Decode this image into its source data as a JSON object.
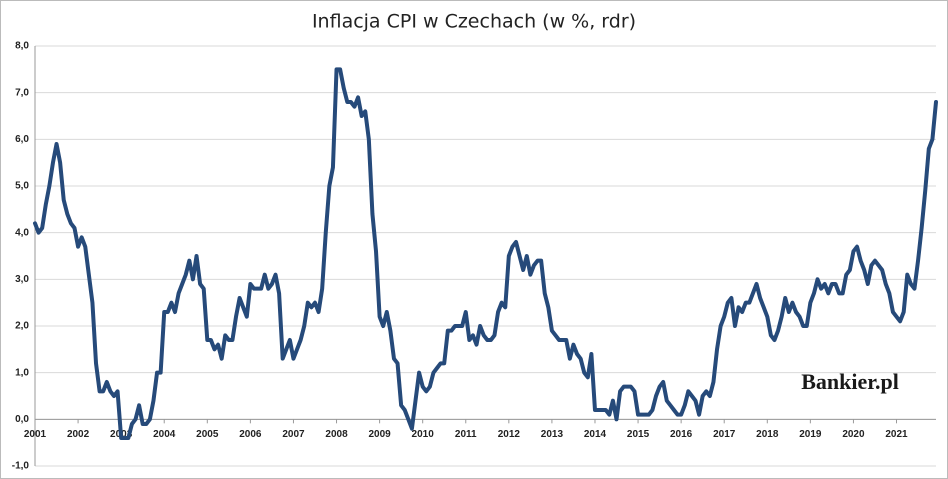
{
  "chart_data": {
    "type": "line",
    "title": "Inflacja CPI w Czechach (w %, rdr)",
    "watermark": "Bankier.pl",
    "color": "#264a7a",
    "grid": true,
    "ylim": [
      -1,
      8
    ],
    "yticks": [
      {
        "value": -1,
        "label": "-1,0"
      },
      {
        "value": 0,
        "label": "0,0"
      },
      {
        "value": 1,
        "label": "1,0"
      },
      {
        "value": 2,
        "label": "2,0"
      },
      {
        "value": 3,
        "label": "3,0"
      },
      {
        "value": 4,
        "label": "4,0"
      },
      {
        "value": 5,
        "label": "5,0"
      },
      {
        "value": 6,
        "label": "6,0"
      },
      {
        "value": 7,
        "label": "7,0"
      },
      {
        "value": 8,
        "label": "8,0"
      }
    ],
    "categories": [
      "2001",
      null,
      null,
      null,
      null,
      null,
      null,
      null,
      null,
      null,
      null,
      null,
      "2002",
      null,
      null,
      null,
      null,
      null,
      null,
      null,
      null,
      null,
      null,
      null,
      "2003",
      null,
      null,
      null,
      null,
      null,
      null,
      null,
      null,
      null,
      null,
      null,
      "2004",
      null,
      null,
      null,
      null,
      null,
      null,
      null,
      null,
      null,
      null,
      null,
      "2005",
      null,
      null,
      null,
      null,
      null,
      null,
      null,
      null,
      null,
      null,
      null,
      "2006",
      null,
      null,
      null,
      null,
      null,
      null,
      null,
      null,
      null,
      null,
      null,
      "2007",
      null,
      null,
      null,
      null,
      null,
      null,
      null,
      null,
      null,
      null,
      null,
      "2008",
      null,
      null,
      null,
      null,
      null,
      null,
      null,
      null,
      null,
      null,
      null,
      "2009",
      null,
      null,
      null,
      null,
      null,
      null,
      null,
      null,
      null,
      null,
      null,
      "2010",
      null,
      null,
      null,
      null,
      null,
      null,
      null,
      null,
      null,
      null,
      null,
      "2011",
      null,
      null,
      null,
      null,
      null,
      null,
      null,
      null,
      null,
      null,
      null,
      "2012",
      null,
      null,
      null,
      null,
      null,
      null,
      null,
      null,
      null,
      null,
      null,
      "2013",
      null,
      null,
      null,
      null,
      null,
      null,
      null,
      null,
      null,
      null,
      null,
      "2014",
      null,
      null,
      null,
      null,
      null,
      null,
      null,
      null,
      null,
      null,
      null,
      "2015",
      null,
      null,
      null,
      null,
      null,
      null,
      null,
      null,
      null,
      null,
      null,
      "2016",
      null,
      null,
      null,
      null,
      null,
      null,
      null,
      null,
      null,
      null,
      null,
      "2017",
      null,
      null,
      null,
      null,
      null,
      null,
      null,
      null,
      null,
      null,
      null,
      "2018",
      null,
      null,
      null,
      null,
      null,
      null,
      null,
      null,
      null,
      null,
      null,
      "2019",
      null,
      null,
      null,
      null,
      null,
      null,
      null,
      null,
      null,
      null,
      null,
      "2020",
      null,
      null,
      null,
      null,
      null,
      null,
      null,
      null,
      null,
      null,
      null,
      "2021",
      null,
      null,
      null,
      null,
      null,
      null,
      null,
      null,
      null,
      null,
      null
    ],
    "values": [
      4.2,
      4.0,
      4.1,
      4.6,
      5.0,
      5.5,
      5.9,
      5.5,
      4.7,
      4.4,
      4.2,
      4.1,
      3.7,
      3.9,
      3.7,
      3.1,
      2.5,
      1.2,
      0.6,
      0.6,
      0.8,
      0.6,
      0.5,
      0.6,
      -0.4,
      -0.4,
      -0.4,
      -0.1,
      0.0,
      0.3,
      -0.1,
      -0.1,
      0.0,
      0.4,
      1.0,
      1.0,
      2.3,
      2.3,
      2.5,
      2.3,
      2.7,
      2.9,
      3.1,
      3.4,
      3.0,
      3.5,
      2.9,
      2.8,
      1.7,
      1.7,
      1.5,
      1.6,
      1.3,
      1.8,
      1.7,
      1.7,
      2.2,
      2.6,
      2.4,
      2.2,
      2.9,
      2.8,
      2.8,
      2.8,
      3.1,
      2.8,
      2.9,
      3.1,
      2.7,
      1.3,
      1.5,
      1.7,
      1.3,
      1.5,
      1.7,
      2.0,
      2.5,
      2.4,
      2.5,
      2.3,
      2.8,
      4.0,
      5.0,
      5.4,
      7.5,
      7.5,
      7.1,
      6.8,
      6.8,
      6.7,
      6.9,
      6.5,
      6.6,
      6.0,
      4.4,
      3.6,
      2.2,
      2.0,
      2.3,
      1.9,
      1.3,
      1.2,
      0.3,
      0.2,
      0.0,
      -0.2,
      0.4,
      1.0,
      0.7,
      0.6,
      0.7,
      1.0,
      1.1,
      1.2,
      1.2,
      1.9,
      1.9,
      2.0,
      2.0,
      2.0,
      2.3,
      1.7,
      1.8,
      1.6,
      2.0,
      1.8,
      1.7,
      1.7,
      1.8,
      2.3,
      2.5,
      2.4,
      3.5,
      3.7,
      3.8,
      3.5,
      3.2,
      3.5,
      3.1,
      3.3,
      3.4,
      3.4,
      2.7,
      2.4,
      1.9,
      1.8,
      1.7,
      1.7,
      1.7,
      1.3,
      1.6,
      1.4,
      1.3,
      1.0,
      0.9,
      1.4,
      0.2,
      0.2,
      0.2,
      0.2,
      0.1,
      0.4,
      0.0,
      0.6,
      0.7,
      0.7,
      0.7,
      0.6,
      0.1,
      0.1,
      0.1,
      0.1,
      0.2,
      0.5,
      0.7,
      0.8,
      0.4,
      0.3,
      0.2,
      0.1,
      0.1,
      0.3,
      0.6,
      0.5,
      0.4,
      0.1,
      0.5,
      0.6,
      0.5,
      0.8,
      1.5,
      2.0,
      2.2,
      2.5,
      2.6,
      2.0,
      2.4,
      2.3,
      2.5,
      2.5,
      2.7,
      2.9,
      2.6,
      2.4,
      2.2,
      1.8,
      1.7,
      1.9,
      2.2,
      2.6,
      2.3,
      2.5,
      2.3,
      2.2,
      2.0,
      2.0,
      2.5,
      2.7,
      3.0,
      2.8,
      2.9,
      2.7,
      2.9,
      2.9,
      2.7,
      2.7,
      3.1,
      3.2,
      3.6,
      3.7,
      3.4,
      3.2,
      2.9,
      3.3,
      3.4,
      3.3,
      3.2,
      2.9,
      2.7,
      2.3,
      2.2,
      2.1,
      2.3,
      3.1,
      2.9,
      2.8,
      3.4,
      4.1,
      4.9,
      5.8,
      6.0,
      6.8
    ]
  }
}
